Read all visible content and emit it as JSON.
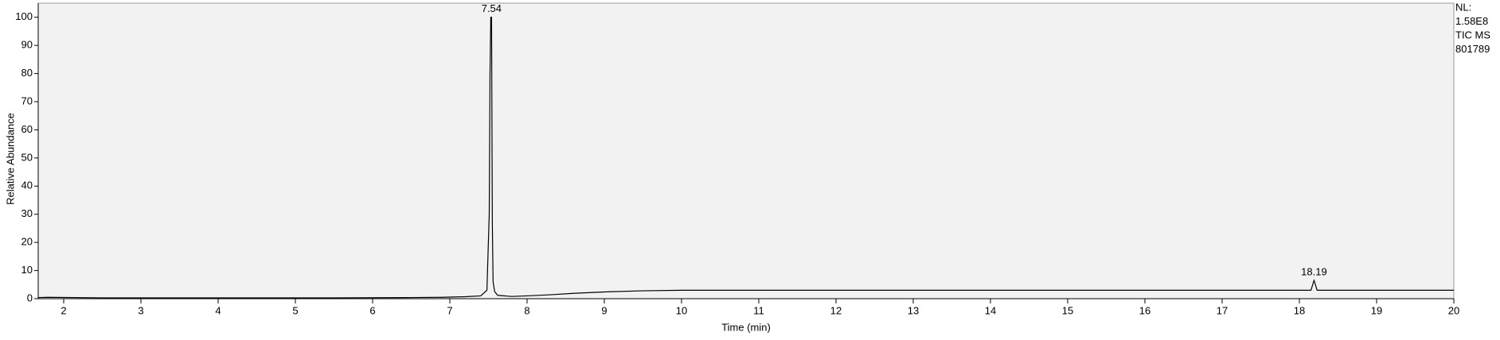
{
  "chart_data": {
    "type": "line",
    "xlabel": "Time (min)",
    "ylabel": "Relative Abundance",
    "xlim": [
      1.67,
      20
    ],
    "ylim": [
      0,
      105
    ],
    "xticks": [
      2,
      3,
      4,
      5,
      6,
      7,
      8,
      9,
      10,
      11,
      12,
      13,
      14,
      15,
      16,
      17,
      18,
      19,
      20
    ],
    "yticks": [
      0,
      10,
      20,
      30,
      40,
      50,
      60,
      70,
      80,
      90,
      100
    ],
    "series": [
      {
        "name": "TIC MS",
        "color": "#000000",
        "x": [
          1.67,
          1.8,
          2.5,
          3.5,
          4.5,
          5.5,
          6.5,
          6.9,
          7.2,
          7.4,
          7.48,
          7.51,
          7.52,
          7.53,
          7.54,
          7.55,
          7.56,
          7.58,
          7.62,
          7.8,
          8.0,
          8.3,
          8.6,
          9.0,
          9.5,
          10.0,
          11.0,
          12.0,
          13.0,
          14.0,
          15.0,
          16.0,
          17.0,
          18.0,
          18.15,
          18.19,
          18.23,
          18.4,
          19.0,
          20.0
        ],
        "y": [
          0.4,
          0.5,
          0.3,
          0.3,
          0.3,
          0.3,
          0.4,
          0.5,
          0.7,
          1.0,
          3,
          30,
          80,
          100,
          100,
          27,
          6,
          2.5,
          1.2,
          0.8,
          1.0,
          1.4,
          1.9,
          2.4,
          2.8,
          3.0,
          3.0,
          3.0,
          3.0,
          3.0,
          3.0,
          3.0,
          3.0,
          3.0,
          3.0,
          6.5,
          3.0,
          3.0,
          3.0,
          3.0
        ]
      }
    ],
    "annotations": [
      {
        "text": "7.54",
        "x": 7.54,
        "y": 100
      },
      {
        "text": "18.19",
        "x": 18.19,
        "y": 6.5
      }
    ],
    "side_text": [
      "NL:",
      "1.58E8",
      "TIC  MS",
      "801789"
    ],
    "background": "#f2f2f2"
  }
}
